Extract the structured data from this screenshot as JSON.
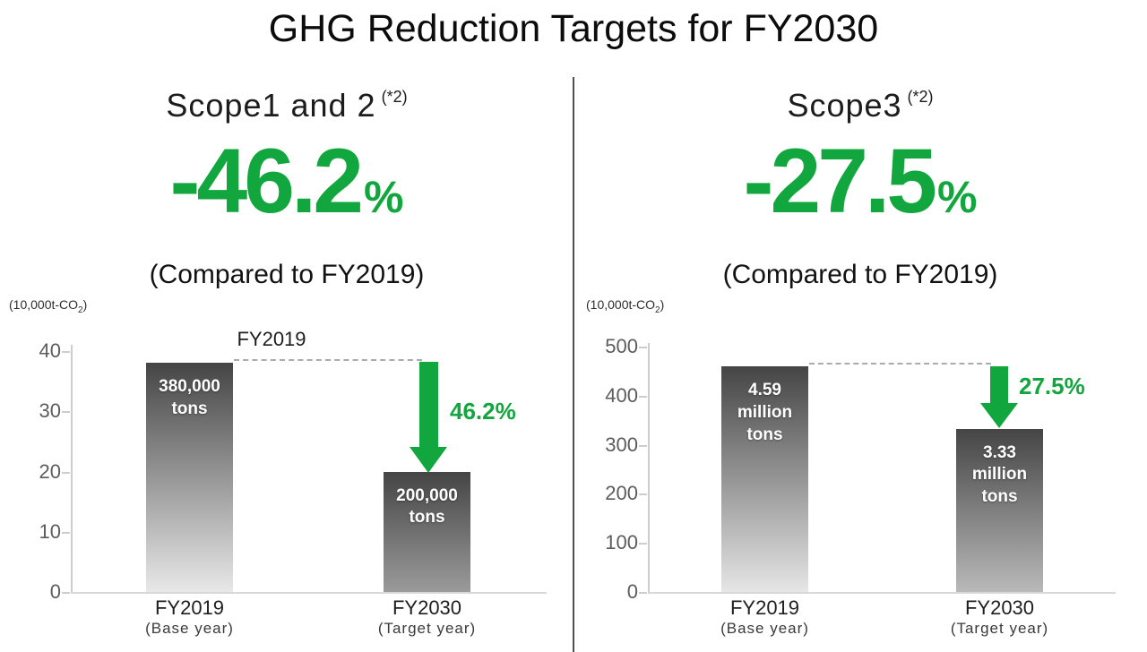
{
  "title": "GHG Reduction Targets for FY2030",
  "colors": {
    "green": "#12a73e",
    "bar_gradient_top": "#454545",
    "bar_gradient_bottom": "#ececec",
    "axis_gray": "#cdcdcd",
    "dash_gray": "#ababab",
    "divider_gray": "#505050"
  },
  "panels": [
    {
      "scope_title": "Scope1 and 2",
      "scope_note": "(*2)",
      "headline_value": "-46.2",
      "headline_unit": "%",
      "compare_note": "(Compared to FY2019)",
      "unit_prefix": "(10,000t-CO",
      "unit_sub": "2",
      "unit_suffix": ")"
    },
    {
      "scope_title": "Scope3",
      "scope_note": "(*2)",
      "headline_value": "-27.5",
      "headline_unit": "%",
      "compare_note": "(Compared to FY2019)",
      "unit_prefix": "(10,000t-CO",
      "unit_sub": "2",
      "unit_suffix": ")"
    }
  ],
  "chart_data": [
    {
      "type": "bar",
      "title": "Scope1 and 2 (*2)",
      "headline": "-46.2% (Compared to FY2019)",
      "unit": "(10,000t-CO2)",
      "ylim": [
        0,
        40
      ],
      "yticks": [
        0,
        10,
        20,
        30,
        40
      ],
      "categories": [
        "FY2019",
        "FY2030"
      ],
      "category_subs": [
        "(Base year)",
        "(Target year)"
      ],
      "values": [
        38,
        20
      ],
      "bar_labels": [
        "380,000\ntons",
        "200,000\ntons"
      ],
      "baseline_label": "FY2019",
      "arrow_label": "46.2%",
      "grid": false,
      "legend": false
    },
    {
      "type": "bar",
      "title": "Scope3 (*2)",
      "headline": "-27.5% (Compared to FY2019)",
      "unit": "(10,000t-CO2)",
      "ylim": [
        0,
        500
      ],
      "yticks": [
        0,
        100,
        200,
        300,
        400,
        500
      ],
      "categories": [
        "FY2019",
        "FY2030"
      ],
      "category_subs": [
        "(Base year)",
        "(Target year)"
      ],
      "values": [
        459,
        333
      ],
      "bar_labels": [
        "4.59\nmillion\ntons",
        "3.33\nmillion\ntons"
      ],
      "baseline_label": null,
      "arrow_label": "27.5%",
      "grid": false,
      "legend": false
    }
  ]
}
